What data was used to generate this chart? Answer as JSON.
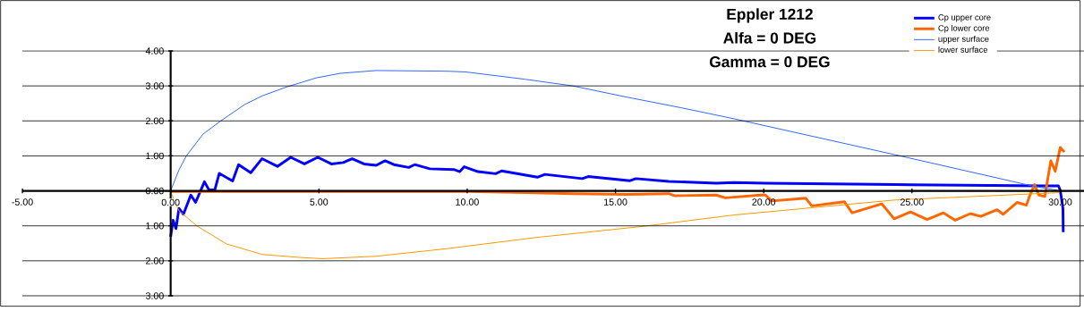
{
  "chart_data": {
    "type": "line",
    "title": "Eppler 1212",
    "subtitle": "Alfa = 0 DEG",
    "annotations": [
      "Gamma = 0 DEG"
    ],
    "series": [
      {
        "name": "Cp upper core",
        "color": "#0000ff",
        "x": [
          0,
          0.08,
          0.18,
          0.28,
          0.43,
          0.68,
          0.84,
          1.14,
          1.29,
          1.49,
          1.64,
          2.09,
          2.29,
          2.7,
          3.08,
          3.6,
          4.05,
          4.51,
          4.96,
          5.42,
          5.82,
          6.12,
          6.52,
          6.93,
          7.23,
          7.53,
          8.03,
          8.23,
          8.74,
          9.55,
          9.75,
          9.9,
          10.36,
          10.96,
          11.16,
          12.37,
          12.62,
          13.88,
          14.08,
          15.49,
          15.69,
          16.8,
          18.4,
          19.0,
          20.06,
          24.44,
          29.48,
          29.94,
          30.0,
          30.09,
          30.1
        ],
        "values": [
          -1.31,
          -0.84,
          -1.08,
          -0.5,
          -0.67,
          -0.12,
          -0.33,
          0.26,
          0.03,
          0.03,
          0.5,
          0.28,
          0.75,
          0.52,
          0.92,
          0.7,
          0.96,
          0.77,
          0.96,
          0.77,
          0.81,
          0.92,
          0.77,
          0.73,
          0.86,
          0.75,
          0.67,
          0.75,
          0.63,
          0.61,
          0.55,
          0.69,
          0.55,
          0.49,
          0.57,
          0.39,
          0.47,
          0.35,
          0.41,
          0.29,
          0.35,
          0.27,
          0.22,
          0.24,
          0.22,
          0.18,
          0.14,
          0.14,
          0.01,
          -0.5,
          -1.18
        ]
      },
      {
        "name": "Cp lower core",
        "color": "#ff6600",
        "x": [
          0,
          2,
          4,
          6,
          8,
          10,
          12,
          13.56,
          15.4,
          16.8,
          17.0,
          18.4,
          18.7,
          19.9,
          20.06,
          20.27,
          21.42,
          21.62,
          22.72,
          22.98,
          23.48,
          23.98,
          24.4,
          24.95,
          25.51,
          26.06,
          26.46,
          26.97,
          27.32,
          27.87,
          28.07,
          28.55,
          28.86,
          28.96,
          29.13,
          29.28,
          29.48,
          29.68,
          29.83,
          30.0,
          30.14
        ],
        "values": [
          -0.02,
          -0.02,
          -0.02,
          -0.02,
          -0.02,
          -0.02,
          -0.05,
          -0.08,
          -0.1,
          -0.08,
          -0.14,
          -0.12,
          -0.2,
          -0.12,
          -0.12,
          -0.29,
          -0.21,
          -0.43,
          -0.31,
          -0.63,
          -0.5,
          -0.37,
          -0.8,
          -0.6,
          -0.82,
          -0.63,
          -0.84,
          -0.65,
          -0.73,
          -0.54,
          -0.67,
          -0.33,
          -0.41,
          -0.16,
          0.18,
          -0.12,
          -0.16,
          0.86,
          0.56,
          1.24,
          1.11
        ]
      },
      {
        "name": "upper surface",
        "color": "#3366ff",
        "x": [
          0,
          0.28,
          0.53,
          1.09,
          1.69,
          2.5,
          3.1,
          3.91,
          4.91,
          5.72,
          6.93,
          9.34,
          9.94,
          11.95,
          13.56,
          15.38,
          17.19,
          19.0,
          24.44,
          29.06,
          30
        ],
        "values": [
          0,
          0.6,
          1.0,
          1.62,
          2.0,
          2.47,
          2.72,
          2.97,
          3.23,
          3.36,
          3.44,
          3.42,
          3.4,
          3.19,
          3.0,
          2.68,
          2.38,
          2.06,
          1.03,
          0.14,
          0
        ]
      },
      {
        "name": "lower surface",
        "color": "#ff9900",
        "x": [
          0,
          0.28,
          0.88,
          1.89,
          3.1,
          4.31,
          5.11,
          6.93,
          9.34,
          12.36,
          15.98,
          19.0,
          24.44,
          30
        ],
        "values": [
          -0.03,
          -0.57,
          -1.0,
          -1.52,
          -1.82,
          -1.9,
          -1.94,
          -1.87,
          -1.65,
          -1.33,
          -1.01,
          -0.69,
          -0.26,
          -0.05
        ]
      }
    ],
    "xlim": [
      -5,
      30.8
    ],
    "ylim": [
      -3,
      4
    ],
    "xticks": [
      {
        "value": -5,
        "label": "-5.00"
      },
      {
        "value": 0,
        "label": "0.00"
      },
      {
        "value": 5,
        "label": "5.00"
      },
      {
        "value": 10,
        "label": "10.00"
      },
      {
        "value": 15,
        "label": "15.00"
      },
      {
        "value": 20,
        "label": "20.00"
      },
      {
        "value": 25,
        "label": "25.00"
      },
      {
        "value": 30,
        "label": "30.00"
      }
    ],
    "yticks": [
      {
        "value": -3,
        "label": "3.00"
      },
      {
        "value": -2,
        "label": "2.00"
      },
      {
        "value": -1,
        "label": "1.00"
      },
      {
        "value": 0,
        "label": "0.00"
      },
      {
        "value": 1,
        "label": "1.00"
      },
      {
        "value": 2,
        "label": "2.00"
      },
      {
        "value": 3,
        "label": "3.00"
      },
      {
        "value": 4,
        "label": "4.00"
      }
    ],
    "grid": "y",
    "legend": "top right",
    "marker": "none",
    "line_style": "solid"
  }
}
